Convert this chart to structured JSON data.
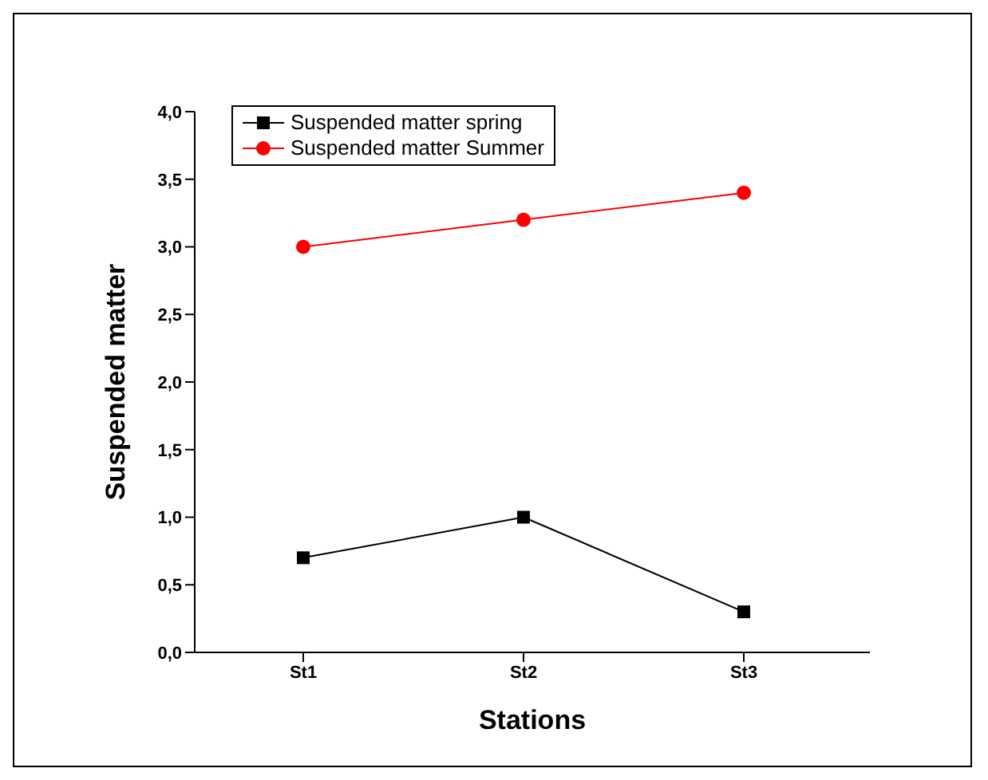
{
  "chart_data": {
    "type": "line",
    "xlabel": "Stations",
    "ylabel": "Suspended matter",
    "categories": [
      "St1",
      "St2",
      "St3"
    ],
    "series": [
      {
        "name": "Suspended matter spring",
        "color": "#000000",
        "marker": "square",
        "values": [
          0.7,
          1.0,
          0.3
        ]
      },
      {
        "name": "Suspended matter Summer",
        "color": "#ff0000",
        "marker": "circle",
        "values": [
          3.0,
          3.2,
          3.4
        ]
      }
    ],
    "ylim": [
      0,
      4
    ],
    "yticks": [
      {
        "value": 0,
        "label": "0,0"
      },
      {
        "value": 0.5,
        "label": "0,5"
      },
      {
        "value": 1,
        "label": "1,0"
      },
      {
        "value": 1.5,
        "label": "1,5"
      },
      {
        "value": 2,
        "label": "2,0"
      },
      {
        "value": 2.5,
        "label": "2,5"
      },
      {
        "value": 3,
        "label": "3,0"
      },
      {
        "value": 3.5,
        "label": "3,5"
      },
      {
        "value": 4,
        "label": "4,0"
      }
    ],
    "grid": false,
    "legend": "top left"
  }
}
